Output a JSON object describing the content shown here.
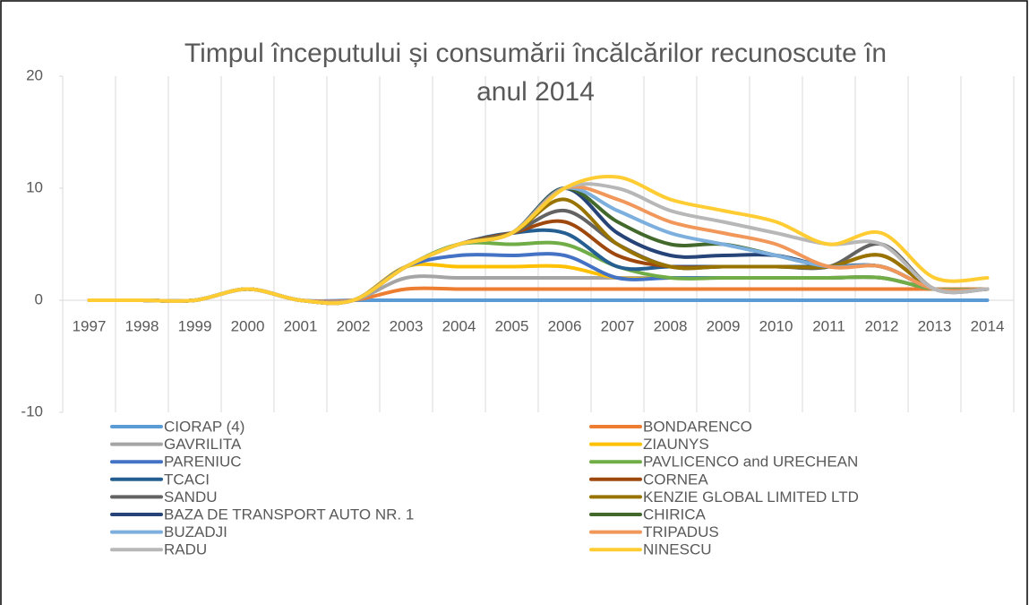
{
  "chart_data": {
    "type": "line",
    "smooth": true,
    "title": "Timpul începutului și consumării încălcărilor recunoscute în anul 2014",
    "categories": [
      "1997",
      "1998",
      "1999",
      "2000",
      "2001",
      "2002",
      "2003",
      "2004",
      "2005",
      "2006",
      "2007",
      "2008",
      "2009",
      "2010",
      "2011",
      "2012",
      "2013",
      "2014"
    ],
    "ylim": [
      -10,
      20
    ],
    "yticks": [
      -10,
      0,
      10,
      20
    ],
    "series": [
      {
        "name": "CIORAP (4)",
        "color": "#5b9bd5",
        "values": [
          0,
          0,
          0,
          1,
          0,
          0,
          0,
          0,
          0,
          0,
          0,
          0,
          0,
          0,
          0,
          0,
          0,
          0
        ]
      },
      {
        "name": "BONDARENCO",
        "color": "#ed7d31",
        "values": [
          0,
          0,
          0,
          1,
          0,
          0,
          1,
          1,
          1,
          1,
          1,
          1,
          1,
          1,
          1,
          1,
          1,
          1
        ]
      },
      {
        "name": "GAVRILITA",
        "color": "#a5a5a5",
        "values": [
          0,
          0,
          0,
          1,
          0,
          0,
          2,
          2,
          2,
          2,
          2,
          2,
          2,
          2,
          2,
          2,
          1,
          1
        ]
      },
      {
        "name": "ZIAUNYS",
        "color": "#ffc000",
        "values": [
          0,
          0,
          0,
          1,
          0,
          0,
          3,
          3,
          3,
          3,
          2,
          2,
          2,
          2,
          2,
          2,
          1,
          1
        ]
      },
      {
        "name": "PARENIUC",
        "color": "#4472c4",
        "values": [
          0,
          0,
          0,
          1,
          0,
          0,
          3,
          4,
          4,
          4,
          2,
          2,
          2,
          2,
          2,
          2,
          1,
          1
        ]
      },
      {
        "name": "PAVLICENCO and URECHEAN",
        "color": "#70ad47",
        "values": [
          0,
          0,
          0,
          1,
          0,
          0,
          3,
          5,
          5,
          5,
          3,
          2,
          2,
          2,
          2,
          2,
          1,
          1
        ]
      },
      {
        "name": "TCACI",
        "color": "#255e91",
        "values": [
          0,
          0,
          0,
          1,
          0,
          0,
          3,
          5,
          6,
          6,
          3,
          3,
          3,
          3,
          3,
          3,
          1,
          1
        ]
      },
      {
        "name": "CORNEA",
        "color": "#9e480e",
        "values": [
          0,
          0,
          0,
          1,
          0,
          0,
          3,
          5,
          6,
          7,
          4,
          3,
          3,
          3,
          3,
          4,
          1,
          1
        ]
      },
      {
        "name": "SANDU",
        "color": "#636363",
        "values": [
          0,
          0,
          0,
          1,
          0,
          0,
          3,
          5,
          6,
          8,
          5,
          3,
          3,
          3,
          3,
          5,
          1,
          1
        ]
      },
      {
        "name": "KENZIE GLOBAL LIMITED LTD",
        "color": "#997300",
        "values": [
          0,
          0,
          0,
          1,
          0,
          0,
          3,
          5,
          6,
          9,
          5,
          3,
          3,
          3,
          3,
          4,
          1,
          1
        ]
      },
      {
        "name": "BAZA DE TRANSPORT AUTO NR. 1",
        "color": "#264478",
        "values": [
          0,
          0,
          0,
          1,
          0,
          0,
          3,
          5,
          6,
          10,
          6,
          4,
          4,
          4,
          3,
          3,
          1,
          1
        ]
      },
      {
        "name": "CHIRICA",
        "color": "#43682b",
        "values": [
          0,
          0,
          0,
          1,
          0,
          0,
          3,
          5,
          6,
          10,
          7,
          5,
          5,
          4,
          3,
          3,
          1,
          1
        ]
      },
      {
        "name": "BUZADJI",
        "color": "#7cafdd",
        "values": [
          0,
          0,
          0,
          1,
          0,
          0,
          3,
          5,
          6,
          10,
          8,
          6,
          5,
          4,
          3,
          3,
          1,
          1
        ]
      },
      {
        "name": "TRIPADUS",
        "color": "#f1975a",
        "values": [
          0,
          0,
          0,
          1,
          0,
          0,
          3,
          5,
          6,
          10,
          9,
          7,
          6,
          5,
          3,
          3,
          1,
          1
        ]
      },
      {
        "name": "RADU",
        "color": "#b7b7b7",
        "values": [
          0,
          0,
          0,
          1,
          0,
          0,
          3,
          5,
          6,
          10,
          10,
          8,
          7,
          6,
          5,
          5,
          1,
          1
        ]
      },
      {
        "name": "NINESCU",
        "color": "#ffcd33",
        "values": [
          0,
          0,
          0,
          1,
          0,
          0,
          3,
          5,
          6,
          10,
          11,
          9,
          8,
          7,
          5,
          6,
          2,
          2
        ]
      }
    ]
  }
}
